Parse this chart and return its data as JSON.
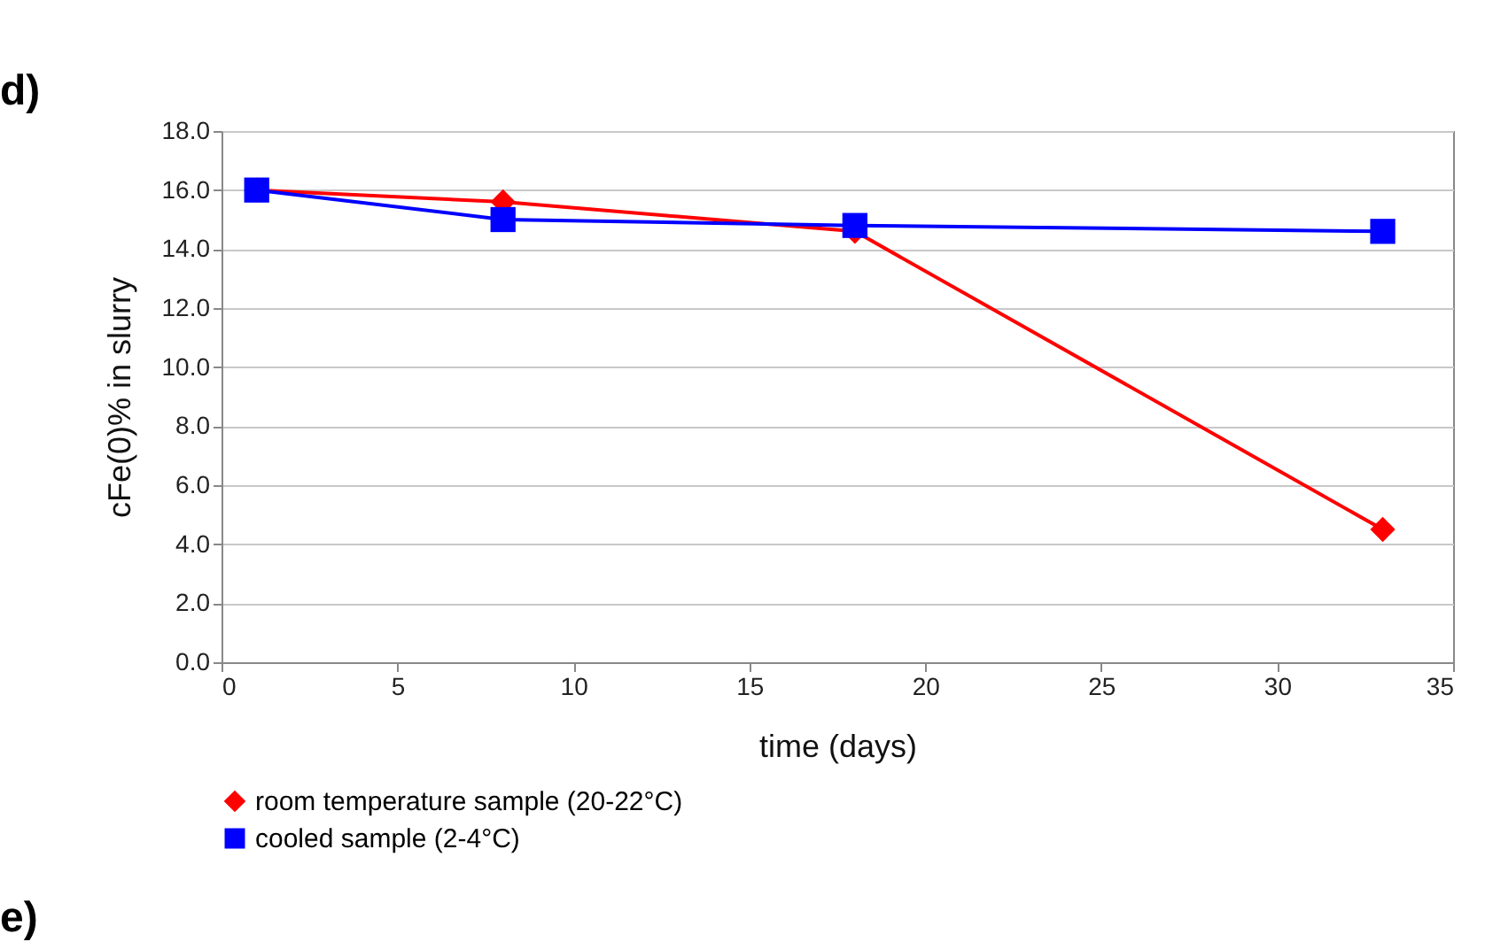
{
  "chart_data": {
    "type": "line",
    "xlabel": "time (days)",
    "ylabel": "cFe(0)% in slurry",
    "xlim": [
      0,
      35
    ],
    "xticks": [
      0,
      5,
      10,
      15,
      20,
      25,
      30,
      35
    ],
    "ylim": [
      0,
      18
    ],
    "yticks": [
      {
        "value": 0,
        "label": "0.0"
      },
      {
        "value": 2,
        "label": "2.0"
      },
      {
        "value": 4,
        "label": "4.0"
      },
      {
        "value": 6,
        "label": "6.0"
      },
      {
        "value": 8,
        "label": "8.0"
      },
      {
        "value": 10,
        "label": "10.0"
      },
      {
        "value": 12,
        "label": "12.0"
      },
      {
        "value": 14,
        "label": "14.0"
      },
      {
        "value": 16,
        "label": "16.0"
      },
      {
        "value": 18,
        "label": "18.0"
      }
    ],
    "grid": "y",
    "legend": "bottom",
    "line_style": "solid",
    "annotations": [
      "d)",
      "e)"
    ],
    "series": [
      {
        "name": "room temperature sample (20-22°C)",
        "color": "#ff0000",
        "marker": "diamond",
        "x": [
          1,
          8,
          18,
          33
        ],
        "values": [
          16.0,
          15.6,
          14.6,
          4.5
        ]
      },
      {
        "name": "cooled sample (2-4°C)",
        "color": "#0000ff",
        "marker": "square",
        "x": [
          1,
          8,
          18,
          33
        ],
        "values": [
          16.0,
          15.0,
          14.8,
          14.6
        ]
      }
    ]
  }
}
